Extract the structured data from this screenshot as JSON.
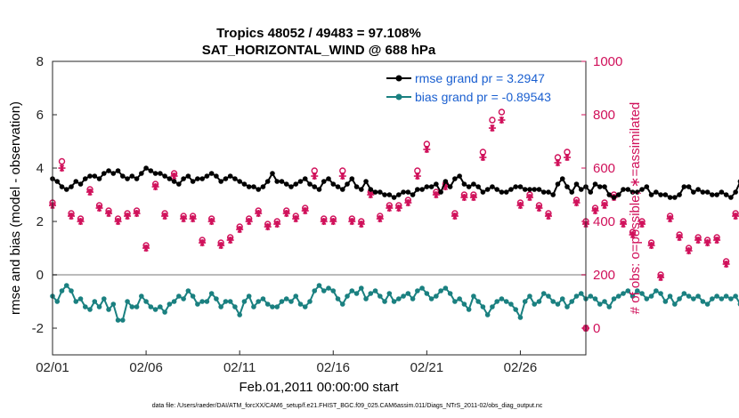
{
  "chart_data": {
    "type": "line",
    "title": "Tropics 48052 / 49483 = 97.108%",
    "subtitle": "SAT_HORIZONTAL_WIND @ 688 hPa",
    "xlabel": "Feb.01,2011 00:00:00 start",
    "ylabel_left": "rmse and bias (model - observation)",
    "ylabel_right": "# of obs: o=possible; ∗=assimilated",
    "x_tick_labels": [
      "02/01",
      "02/06",
      "02/11",
      "02/16",
      "02/21",
      "02/26"
    ],
    "x_tick_days": [
      0,
      5,
      10,
      15,
      20,
      25
    ],
    "xlim_days": [
      0,
      28.5
    ],
    "ylim_left": [
      -3,
      8
    ],
    "ylim_right": [
      -100,
      1000
    ],
    "y_ticks_left": [
      -2,
      0,
      2,
      4,
      6,
      8
    ],
    "y_ticks_right": [
      0,
      200,
      400,
      600,
      800,
      1000
    ],
    "zero_line": 0,
    "footnote": "data file: /Users/raeder/DAI/ATM_forcXX/CAM6_setup/f.e21.FHIST_BGC.f09_025.CAM6assim.011/Diags_NTrS_2011-02/obs_diag_output.nc",
    "colors": {
      "rmse": "#000000",
      "bias": "#1a8080",
      "obs": "#d0105a",
      "zero": "#bbbbbb"
    },
    "legend_position": "top-right",
    "series": [
      {
        "name": "rmse grand pr = 3.2947",
        "axis": "left",
        "x_start_day": 0,
        "x_step_day": 0.25,
        "values": [
          3.6,
          3.5,
          3.3,
          3.2,
          3.3,
          3.5,
          3.4,
          3.6,
          3.7,
          3.7,
          3.6,
          3.8,
          3.9,
          3.8,
          3.9,
          3.7,
          3.6,
          3.7,
          3.6,
          3.8,
          4.0,
          3.9,
          3.8,
          3.8,
          3.7,
          3.6,
          3.5,
          3.4,
          3.6,
          3.7,
          3.5,
          3.6,
          3.6,
          3.7,
          3.8,
          3.7,
          3.5,
          3.6,
          3.7,
          3.6,
          3.5,
          3.4,
          3.3,
          3.3,
          3.2,
          3.3,
          3.5,
          3.8,
          3.5,
          3.5,
          3.4,
          3.3,
          3.4,
          3.5,
          3.6,
          3.4,
          3.3,
          3.2,
          3.5,
          3.6,
          3.4,
          3.3,
          3.2,
          3.4,
          3.6,
          3.3,
          3.2,
          3.5,
          3.2,
          3.1,
          3.1,
          3.0,
          3.0,
          2.9,
          3.0,
          3.1,
          3.1,
          3.0,
          3.2,
          3.2,
          3.3,
          3.3,
          3.4,
          3.1,
          3.5,
          3.3,
          3.6,
          3.7,
          3.4,
          3.3,
          3.4,
          3.3,
          3.1,
          3.2,
          3.3,
          3.2,
          3.1,
          3.1,
          3.2,
          3.3,
          3.3,
          3.2,
          3.2,
          3.2,
          3.2,
          3.1,
          3.1,
          3.0,
          3.4,
          3.6,
          3.3,
          3.1,
          3.4,
          3.2,
          3.3,
          3.1,
          3.4,
          3.3,
          3.3,
          3.0,
          2.9,
          3.0,
          3.2,
          3.2,
          3.1,
          3.1,
          3.2,
          3.3,
          3.0,
          3.1,
          3.0,
          3.0,
          2.9,
          2.9,
          3.0,
          3.3,
          3.3,
          3.1,
          3.2,
          3.1,
          3.1,
          3.0,
          3.0,
          3.1,
          3.0,
          2.9,
          3.1,
          3.5,
          3.5,
          3.1,
          3.2,
          3.0,
          3.1,
          3.4,
          3.2,
          3.1,
          3.3,
          3.2,
          3.0,
          2.9,
          3.1,
          3.0,
          2.9,
          2.9,
          3.1,
          3.2,
          3.1,
          3.0,
          3.2,
          3.1,
          3.1,
          3.0,
          3.1,
          3.6,
          3.8,
          3.6,
          3.4,
          3.4,
          3.1,
          3.2,
          3.1,
          3.1,
          3.0,
          3.0,
          3.1,
          3.1
        ],
        "marker": "filled-circle"
      },
      {
        "name": "bias grand pr = -0.89543",
        "axis": "left",
        "x_start_day": 0,
        "x_step_day": 0.25,
        "values": [
          -0.8,
          -1.0,
          -0.6,
          -0.4,
          -0.6,
          -1.0,
          -0.9,
          -1.2,
          -1.3,
          -1.0,
          -1.2,
          -0.9,
          -1.3,
          -1.1,
          -1.7,
          -1.7,
          -1.0,
          -1.2,
          -1.2,
          -0.8,
          -1.0,
          -1.2,
          -1.3,
          -1.2,
          -1.4,
          -1.1,
          -1.0,
          -0.8,
          -0.9,
          -0.6,
          -0.8,
          -1.1,
          -1.0,
          -1.0,
          -0.7,
          -0.9,
          -1.2,
          -1.0,
          -1.0,
          -1.2,
          -1.5,
          -1.0,
          -0.8,
          -1.2,
          -1.0,
          -0.9,
          -1.1,
          -1.2,
          -1.2,
          -1.0,
          -0.9,
          -1.0,
          -0.8,
          -1.1,
          -1.2,
          -1.0,
          -0.6,
          -0.4,
          -0.6,
          -0.5,
          -0.6,
          -0.9,
          -1.1,
          -0.8,
          -0.6,
          -0.7,
          -0.5,
          -0.9,
          -0.7,
          -0.6,
          -0.8,
          -1.0,
          -0.7,
          -1.0,
          -0.9,
          -0.8,
          -0.7,
          -0.9,
          -0.6,
          -0.5,
          -0.7,
          -0.9,
          -0.8,
          -0.6,
          -0.5,
          -0.7,
          -1.0,
          -0.9,
          -1.1,
          -1.3,
          -0.8,
          -1.0,
          -1.2,
          -1.5,
          -1.2,
          -1.0,
          -0.9,
          -1.0,
          -1.1,
          -1.3,
          -1.6,
          -1.0,
          -0.8,
          -1.1,
          -1.0,
          -0.7,
          -0.8,
          -1.0,
          -1.1,
          -0.9,
          -1.2,
          -1.0,
          -0.8,
          -0.7,
          -0.9,
          -0.8,
          -0.9,
          -1.1,
          -1.0,
          -1.2,
          -0.9,
          -0.8,
          -0.7,
          -0.6,
          -0.8,
          -0.6,
          -0.7,
          -0.9,
          -0.8,
          -0.6,
          -0.7,
          -1.0,
          -0.8,
          -1.1,
          -0.9,
          -0.7,
          -0.8,
          -0.9,
          -0.8,
          -1.0,
          -1.1,
          -0.9,
          -0.8,
          -0.9,
          -0.8,
          -0.9,
          -0.8,
          -1.1,
          -0.9,
          -0.8,
          -1.0,
          -0.9,
          -0.7,
          -0.8,
          -0.9,
          -1.0,
          -1.2,
          -1.0,
          -0.8,
          -0.7,
          -0.9,
          -0.8,
          -0.8,
          -1.0,
          -1.2,
          -0.9,
          -0.8,
          -1.0,
          -1.1,
          -0.9,
          -1.0,
          -1.1,
          -0.8,
          -0.7,
          -0.8,
          -0.7,
          -0.9,
          -1.0,
          -1.1,
          -1.2,
          -1.0,
          -1.1,
          -1.0
        ],
        "marker": "filled-circle"
      }
    ],
    "obs_counts": {
      "axis": "right",
      "x_start_day": 0,
      "x_step_day": 0.25,
      "possible": [
        470,
        480,
        625,
        580,
        430,
        380,
        410,
        480,
        520,
        560,
        460,
        420,
        440,
        560,
        410,
        390,
        430,
        460,
        440,
        400,
        310,
        490,
        540,
        420,
        430,
        490,
        580,
        320,
        420,
        460,
        420,
        330,
        330,
        360,
        410,
        400,
        320,
        290,
        340,
        470,
        380,
        340,
        410,
        400,
        440,
        420,
        390,
        410,
        400,
        420,
        440,
        450,
        420,
        430,
        450,
        470,
        590,
        460,
        410,
        380,
        410,
        440,
        590,
        510,
        410,
        360,
        400,
        340,
        510,
        460,
        420,
        390,
        460,
        420,
        460,
        480,
        480,
        560,
        590,
        600,
        690,
        640,
        510,
        570,
        540,
        380,
        430,
        560,
        500,
        470,
        500,
        560,
        660,
        680,
        780,
        770,
        810,
        880,
        890,
        550,
        470,
        490,
        500,
        690,
        460,
        460,
        430,
        470,
        640,
        700,
        660,
        520,
        480,
        560,
        400,
        410,
        450,
        490,
        470,
        580,
        500,
        420,
        400,
        330,
        360,
        410,
        400,
        350,
        320,
        380,
        200,
        300,
        420,
        400,
        350,
        310,
        300,
        310,
        340,
        410,
        330,
        300,
        340,
        280,
        250,
        390,
        430,
        400,
        410,
        460,
        470,
        370,
        370,
        420,
        380,
        410,
        460,
        470,
        460,
        390,
        380,
        400,
        420,
        440,
        440,
        380,
        380,
        450,
        440,
        460,
        370,
        320,
        340,
        350,
        400,
        360,
        400,
        370,
        340,
        310,
        370,
        380,
        340,
        330,
        400,
        450,
        480,
        380,
        440,
        520,
        540,
        430,
        390,
        340,
        330,
        340
      ],
      "assimilated": [
        460,
        470,
        600,
        560,
        420,
        370,
        400,
        470,
        510,
        550,
        450,
        410,
        430,
        550,
        400,
        380,
        420,
        450,
        430,
        390,
        300,
        480,
        530,
        410,
        420,
        480,
        570,
        310,
        410,
        450,
        410,
        320,
        320,
        350,
        400,
        390,
        310,
        280,
        330,
        460,
        370,
        330,
        400,
        390,
        430,
        410,
        380,
        400,
        390,
        410,
        430,
        440,
        410,
        420,
        440,
        460,
        570,
        450,
        400,
        370,
        400,
        430,
        570,
        500,
        400,
        350,
        390,
        330,
        500,
        450,
        410,
        380,
        450,
        410,
        450,
        470,
        470,
        540,
        570,
        580,
        670,
        620,
        500,
        550,
        530,
        370,
        420,
        540,
        490,
        460,
        490,
        540,
        640,
        660,
        750,
        740,
        780,
        850,
        860,
        530,
        460,
        480,
        490,
        670,
        450,
        450,
        420,
        460,
        620,
        680,
        640,
        510,
        470,
        550,
        390,
        400,
        440,
        480,
        460,
        570,
        490,
        410,
        390,
        320,
        350,
        400,
        390,
        340,
        310,
        370,
        190,
        290,
        410,
        390,
        340,
        300,
        290,
        300,
        330,
        400,
        320,
        290,
        330,
        270,
        240,
        380,
        420,
        390,
        400,
        450,
        460,
        360,
        360,
        410,
        370,
        400,
        450,
        460,
        450,
        380,
        370,
        390,
        410,
        430,
        430,
        370,
        370,
        440,
        430,
        450,
        360,
        310,
        330,
        340,
        390,
        350,
        390,
        360,
        330,
        300,
        360,
        370,
        330,
        320,
        390,
        440,
        470,
        370,
        430,
        510,
        530,
        420,
        380,
        330,
        320,
        330
      ],
      "endpoint": {
        "day": 28.5,
        "possible": 0,
        "assimilated": 0
      }
    }
  }
}
